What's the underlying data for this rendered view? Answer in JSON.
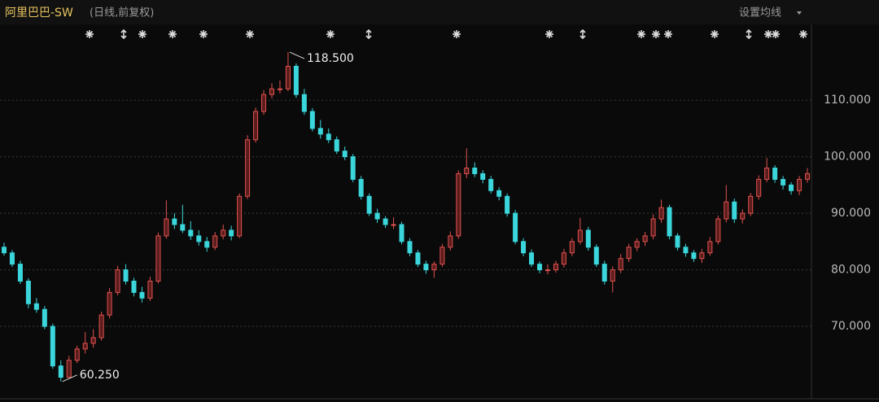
{
  "chart_data": {
    "type": "candlestick",
    "title": "阿里巴巴-SW",
    "subtitle": "(日线,前复权)",
    "menu_label": "设置均线",
    "up_color": "#e0524f",
    "down_color": "#3ad6db",
    "ylim": [
      57.2,
      123.4
    ],
    "yticks": [
      {
        "value": 70,
        "label": "70.000"
      },
      {
        "value": 80,
        "label": "80.000"
      },
      {
        "value": 90,
        "label": "90.000"
      },
      {
        "value": 100,
        "label": "100.000"
      },
      {
        "value": 110,
        "label": "110.000"
      }
    ],
    "grid": true,
    "annotations": [
      {
        "value": 118.5,
        "label": "118.500",
        "kind": "high"
      },
      {
        "value": 60.25,
        "label": "60.250",
        "kind": "low"
      }
    ],
    "ohlc": [
      [
        84,
        84.8,
        82.5,
        83
      ],
      [
        83,
        83.5,
        80.5,
        81
      ],
      [
        81,
        81.6,
        77.5,
        78
      ],
      [
        78,
        78.5,
        73.2,
        74
      ],
      [
        74,
        75,
        72.4,
        73
      ],
      [
        73,
        73.6,
        69.5,
        70
      ],
      [
        70,
        70.5,
        62.5,
        63
      ],
      [
        63,
        64,
        60.25,
        61
      ],
      [
        61,
        64.8,
        60.8,
        64
      ],
      [
        64,
        66.6,
        63.5,
        66
      ],
      [
        66,
        69,
        65.2,
        67
      ],
      [
        67,
        69.5,
        66.2,
        68
      ],
      [
        68,
        72.6,
        67.5,
        72
      ],
      [
        72,
        76.8,
        71.4,
        76
      ],
      [
        76,
        80.7,
        75.5,
        80
      ],
      [
        80,
        81,
        77.4,
        78
      ],
      [
        78,
        78.6,
        75.3,
        76
      ],
      [
        76,
        77,
        74.2,
        75
      ],
      [
        75,
        78.8,
        74.5,
        78
      ],
      [
        78,
        86.6,
        77.6,
        86
      ],
      [
        86,
        92.3,
        85.5,
        89
      ],
      [
        89,
        90,
        87.2,
        88
      ],
      [
        88,
        91.5,
        86.5,
        87
      ],
      [
        87,
        88.6,
        85.3,
        86
      ],
      [
        86,
        87,
        84.3,
        85
      ],
      [
        85,
        85.8,
        83.2,
        84
      ],
      [
        84,
        86.7,
        83.5,
        86
      ],
      [
        86,
        88,
        85.4,
        87
      ],
      [
        87,
        87.8,
        85.2,
        86
      ],
      [
        86,
        93.5,
        85.6,
        93
      ],
      [
        93,
        103.8,
        92.5,
        103
      ],
      [
        103,
        108.7,
        102.5,
        108
      ],
      [
        108,
        111.8,
        107.4,
        111
      ],
      [
        111,
        113,
        110.3,
        112
      ],
      [
        112,
        113.5,
        111.2,
        112
      ],
      [
        112,
        118.5,
        111.6,
        116
      ],
      [
        116,
        116.5,
        110.4,
        111
      ],
      [
        111,
        112,
        107.4,
        108
      ],
      [
        108,
        108.6,
        104.5,
        105
      ],
      [
        105,
        106.5,
        103.2,
        104
      ],
      [
        104,
        105,
        102.4,
        103
      ],
      [
        103,
        103.6,
        100.5,
        101
      ],
      [
        101,
        101.8,
        99.4,
        100
      ],
      [
        100,
        100.5,
        95.5,
        96
      ],
      [
        96,
        96.6,
        92.4,
        93
      ],
      [
        93,
        93.5,
        89.5,
        90
      ],
      [
        90,
        90.8,
        88.3,
        89
      ],
      [
        89,
        89.5,
        87.4,
        88
      ],
      [
        88,
        89.3,
        87.2,
        88
      ],
      [
        88,
        88.5,
        84.5,
        85
      ],
      [
        85,
        85.6,
        82.4,
        83
      ],
      [
        83,
        83.5,
        80.5,
        81
      ],
      [
        81,
        81.6,
        79.3,
        80
      ],
      [
        80,
        81.5,
        78.6,
        81
      ],
      [
        81,
        84.6,
        80.5,
        84
      ],
      [
        84,
        86.8,
        83.4,
        86
      ],
      [
        86,
        97.6,
        85.5,
        97
      ],
      [
        97,
        101.5,
        96.2,
        98
      ],
      [
        98,
        99,
        96.4,
        97
      ],
      [
        97,
        97.6,
        95.3,
        96
      ],
      [
        96,
        96.6,
        93.5,
        94
      ],
      [
        94,
        94.6,
        92.3,
        93
      ],
      [
        93,
        93.5,
        89.4,
        90
      ],
      [
        90,
        90.6,
        84.5,
        85
      ],
      [
        85,
        85.6,
        82.4,
        83
      ],
      [
        83,
        83.6,
        80.5,
        81
      ],
      [
        81,
        81.5,
        79.4,
        80
      ],
      [
        80,
        81,
        79.2,
        80
      ],
      [
        80,
        81.6,
        79.5,
        81
      ],
      [
        81,
        83.7,
        80.4,
        83
      ],
      [
        83,
        85.6,
        82.4,
        85
      ],
      [
        85,
        89.2,
        84.5,
        87
      ],
      [
        87,
        87.6,
        83.4,
        84
      ],
      [
        84,
        84.5,
        80.5,
        81
      ],
      [
        81,
        81.6,
        77.4,
        78
      ],
      [
        78,
        80.6,
        76,
        80
      ],
      [
        80,
        82.8,
        79.4,
        82
      ],
      [
        82,
        84.6,
        81.4,
        84
      ],
      [
        84,
        85.6,
        83.3,
        85
      ],
      [
        85,
        86.7,
        84.2,
        86
      ],
      [
        86,
        89.8,
        85.4,
        89
      ],
      [
        89,
        92.4,
        88.3,
        91
      ],
      [
        91,
        91.5,
        85.4,
        86
      ],
      [
        86,
        86.5,
        83.4,
        84
      ],
      [
        84,
        84.6,
        82.3,
        83
      ],
      [
        83,
        83.5,
        81.4,
        82
      ],
      [
        82,
        83.7,
        81.2,
        83
      ],
      [
        83,
        85.8,
        82.5,
        85
      ],
      [
        85,
        89.6,
        84.5,
        89
      ],
      [
        89,
        95,
        88.4,
        92
      ],
      [
        92,
        92.6,
        88.3,
        89
      ],
      [
        89,
        90.7,
        88.2,
        90
      ],
      [
        90,
        93.6,
        89.5,
        93
      ],
      [
        93,
        96.7,
        92.4,
        96
      ],
      [
        96,
        99.8,
        95.5,
        98
      ],
      [
        98,
        98.5,
        95.4,
        96
      ],
      [
        96,
        96.6,
        94.2,
        95
      ],
      [
        95,
        95.5,
        93.3,
        94
      ],
      [
        94,
        96.6,
        93.2,
        96
      ],
      [
        96,
        98,
        95.4,
        97
      ]
    ]
  }
}
